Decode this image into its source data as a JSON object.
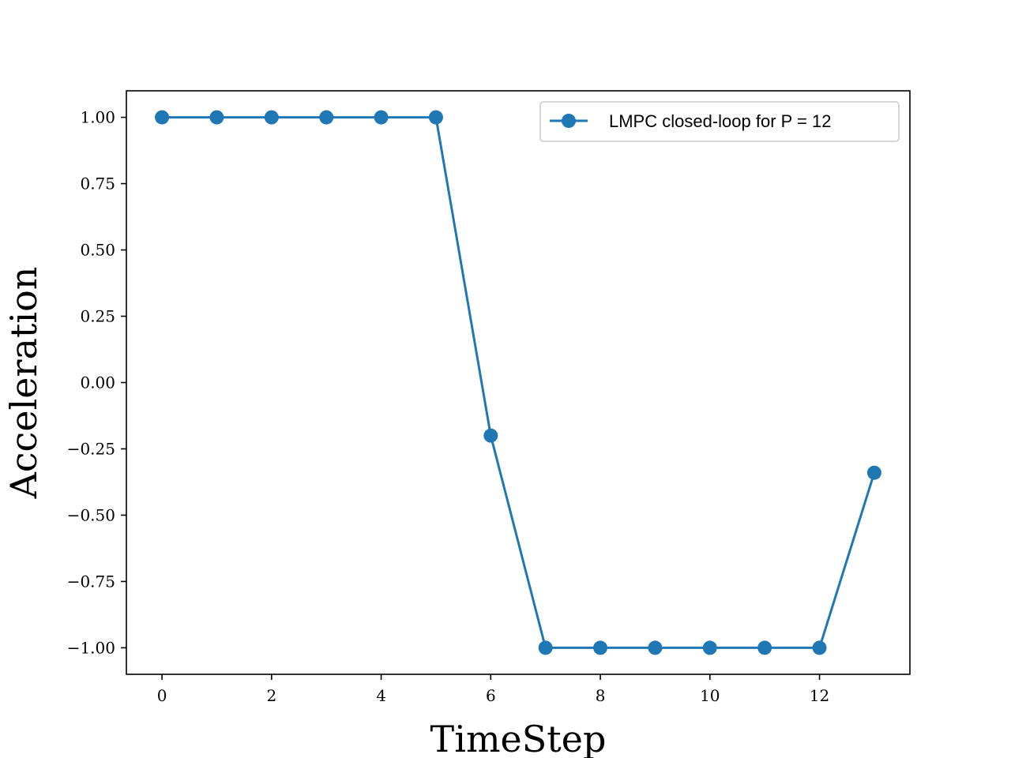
{
  "chart_data": {
    "type": "line",
    "xlabel": "TimeStep",
    "ylabel": "Acceleration",
    "xlim": [
      -0.65,
      13.65
    ],
    "ylim": [
      -1.1,
      1.1
    ],
    "xticks": [
      0,
      2,
      4,
      6,
      8,
      10,
      12
    ],
    "xtick_labels": [
      "0",
      "2",
      "4",
      "6",
      "8",
      "10",
      "12"
    ],
    "yticks": [
      1.0,
      0.75,
      0.5,
      0.25,
      0.0,
      -0.25,
      -0.5,
      -0.75,
      -1.0
    ],
    "ytick_labels": [
      "1.00",
      "0.75",
      "0.50",
      "0.25",
      "0.00",
      "−0.25",
      "−0.50",
      "−0.75",
      "−1.00"
    ],
    "grid": false,
    "legend_position": "top-right",
    "series": [
      {
        "name": "LMPC closed-loop for P = 12",
        "color": "#1f77b4",
        "marker": "circle",
        "x": [
          0,
          1,
          2,
          3,
          4,
          5,
          6,
          7,
          8,
          9,
          10,
          11,
          12,
          13
        ],
        "y": [
          1.0,
          1.0,
          1.0,
          1.0,
          1.0,
          1.0,
          -0.2,
          -1.0,
          -1.0,
          -1.0,
          -1.0,
          -1.0,
          -1.0,
          -0.34
        ]
      }
    ]
  }
}
